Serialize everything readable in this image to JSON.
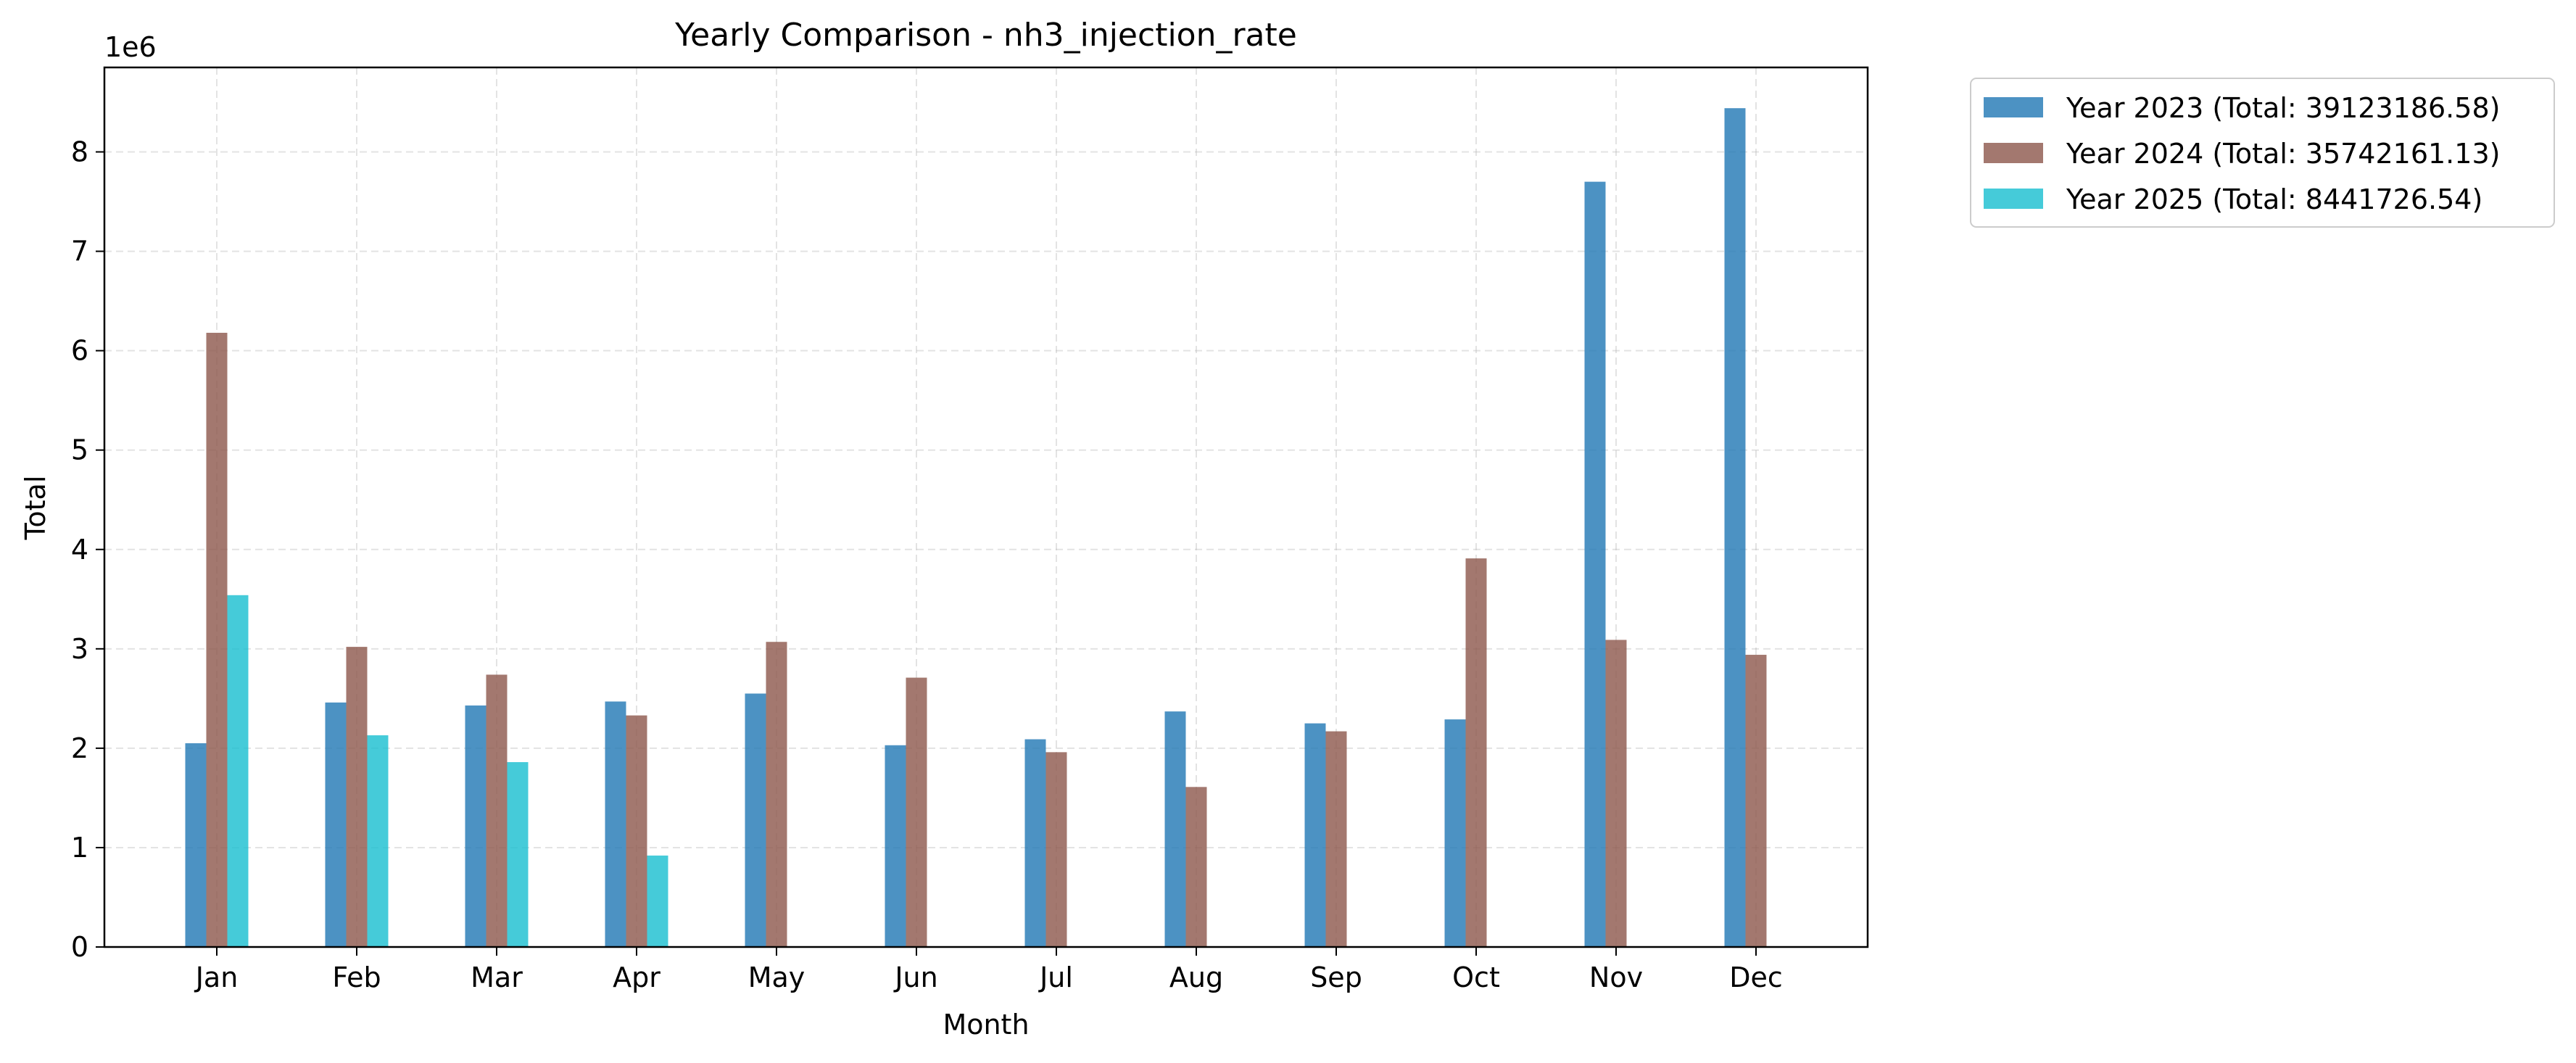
{
  "chart_data": {
    "type": "bar",
    "title": "Yearly Comparison - nh3_injection_rate",
    "xlabel": "Month",
    "ylabel": "Total",
    "y_offset_label": "1e6",
    "categories": [
      "Jan",
      "Feb",
      "Mar",
      "Apr",
      "May",
      "Jun",
      "Jul",
      "Aug",
      "Sep",
      "Oct",
      "Nov",
      "Dec"
    ],
    "yticks": [
      0,
      1,
      2,
      3,
      4,
      5,
      6,
      7,
      8
    ],
    "ylim": [
      0,
      8.85
    ],
    "y_unit_multiplier": 1000000,
    "grid": true,
    "legend_position": "outside-top-right",
    "series": [
      {
        "name": "Year 2023 (Total: 39123186.58)",
        "color": "#1f77b4",
        "values": [
          2.05,
          2.46,
          2.43,
          2.47,
          2.55,
          2.03,
          2.09,
          2.37,
          2.25,
          2.29,
          7.7,
          8.44
        ]
      },
      {
        "name": "Year 2024 (Total: 35742161.13)",
        "color": "#8c564b",
        "values": [
          6.18,
          3.02,
          2.74,
          2.33,
          3.07,
          2.71,
          1.96,
          1.61,
          2.17,
          3.91,
          3.09,
          2.94
        ]
      },
      {
        "name": "Year 2025 (Total: 8441726.54)",
        "color": "#17becf",
        "values": [
          3.54,
          2.13,
          1.86,
          0.92,
          null,
          null,
          null,
          null,
          null,
          null,
          null,
          null
        ]
      }
    ]
  }
}
